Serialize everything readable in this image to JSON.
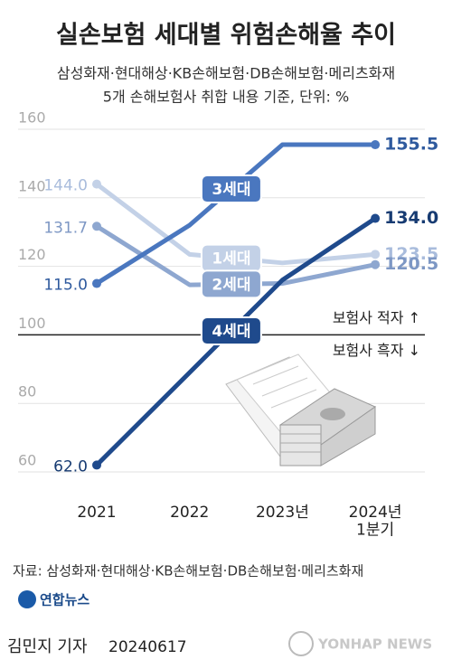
{
  "chart_data": {
    "type": "line",
    "title": "실손보험 세대별 위험손해율 추이",
    "subtitle": [
      "삼성화재·현대해상·KB손해보험·DB손해보험·메리츠화재",
      "5개 손해보험사 취합 내용 기준, 단위: %"
    ],
    "categories": [
      "2021",
      "2022",
      "2023년",
      "2024년\n1분기"
    ],
    "series": [
      {
        "name": "1세대",
        "color": "#c3d1e7",
        "label_color": "#a9bcdc",
        "values": [
          144.0,
          123.5,
          121.0,
          123.5
        ],
        "value_labels": [
          "144.0",
          null,
          null,
          "123.5"
        ]
      },
      {
        "name": "2세대",
        "color": "#8ea7d0",
        "label_color": "#7d97c4",
        "values": [
          131.7,
          114.6,
          115.0,
          120.5
        ],
        "value_labels": [
          "131.7",
          null,
          null,
          "120.5"
        ]
      },
      {
        "name": "3세대",
        "color": "#4a77bf",
        "label_color": "#2f5a9e",
        "values": [
          115.0,
          132.0,
          155.5,
          155.5
        ],
        "value_labels": [
          "115.0",
          null,
          null,
          "155.5"
        ]
      },
      {
        "name": "4세대",
        "color": "#1f4a8c",
        "label_color": "#173b72",
        "values": [
          62.0,
          89.0,
          116.0,
          134.0
        ],
        "value_labels": [
          "62.0",
          null,
          null,
          "134.0"
        ]
      }
    ],
    "ylim": [
      60,
      160
    ],
    "yticks": [
      60,
      80,
      100,
      120,
      140,
      160
    ],
    "grid": true,
    "baseline": 100,
    "annotations": [
      "보험사 적자 ↑",
      "보험사 흑자 ↓"
    ],
    "source": "자료: 삼성화재·현대해상·KB손해보험·DB손해보험·메리츠화재",
    "logo": "연합뉴스",
    "byline": "김민지 기자",
    "date": "20240617",
    "watermark": "YONHAP NEWS"
  }
}
